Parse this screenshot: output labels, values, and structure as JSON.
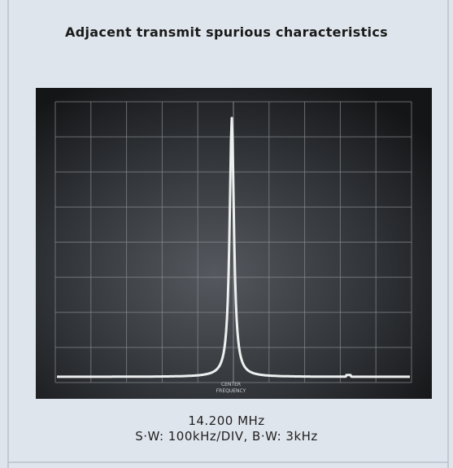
{
  "header": {
    "title": "Adjacent transmit spurious characteristics"
  },
  "screen": {
    "label_lines": [
      "CENTER",
      "FREQUENCY"
    ]
  },
  "caption": {
    "lines": [
      "14.200 MHz",
      "S·W: 100kHz/DIV, B·W: 3kHz"
    ]
  }
}
